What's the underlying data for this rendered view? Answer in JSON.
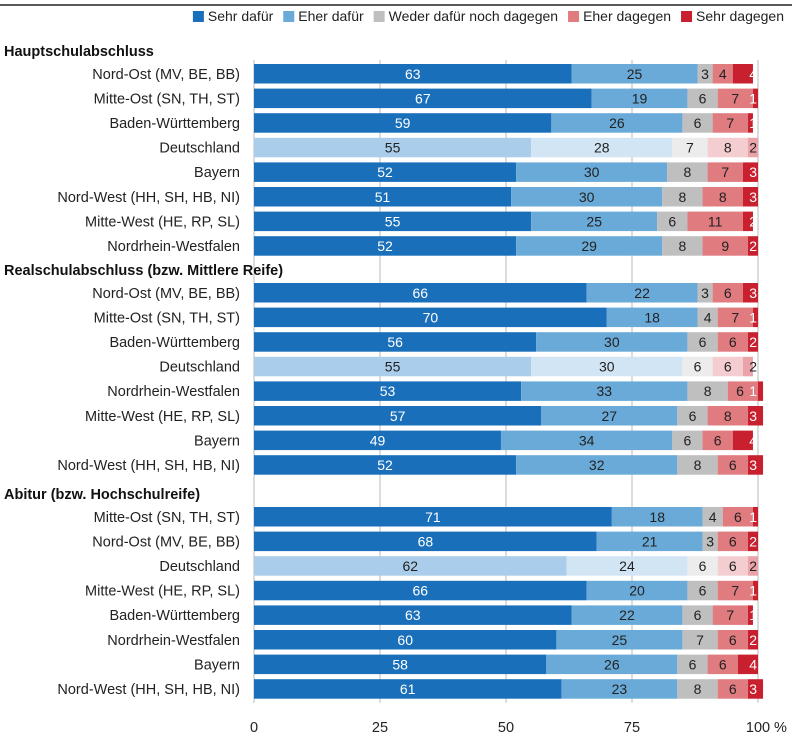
{
  "chart_data": {
    "type": "bar",
    "orientation": "horizontal",
    "stacked": true,
    "xlim": [
      0,
      100
    ],
    "x_ticks": [
      "0",
      "25",
      "50",
      "75",
      "100"
    ],
    "x_unit": "%",
    "grid": true,
    "legend_position": "top",
    "legend": [
      {
        "name": "Sehr dafür",
        "color": "#1a6fba"
      },
      {
        "name": "Eher dafür",
        "color": "#6aaad9"
      },
      {
        "name": "Weder dafür noch dagegen",
        "color": "#bfbfbf"
      },
      {
        "name": "Eher dagegen",
        "color": "#e07b80"
      },
      {
        "name": "Sehr dagegen",
        "color": "#c8202e"
      }
    ],
    "highlight_colors": [
      "#a9cdea",
      "#d2e5f4",
      "#ececec",
      "#f4cdd1",
      "#eaa3a9"
    ],
    "highlight_category": "Deutschland",
    "groups": [
      {
        "title": "Hauptschulabschluss",
        "rows": [
          {
            "label": "Nord-Ost (MV, BE, BB)",
            "values": [
              63,
              25,
              3,
              4,
              4
            ]
          },
          {
            "label": "Mitte-Ost (SN, TH, ST)",
            "values": [
              67,
              19,
              6,
              7,
              1
            ]
          },
          {
            "label": "Baden-Württemberg",
            "values": [
              59,
              26,
              6,
              7,
              1
            ]
          },
          {
            "label": "Deutschland",
            "values": [
              55,
              28,
              7,
              8,
              2
            ]
          },
          {
            "label": "Bayern",
            "values": [
              52,
              30,
              8,
              7,
              3
            ]
          },
          {
            "label": "Nord-West (HH, SH, HB, NI)",
            "values": [
              51,
              30,
              8,
              8,
              3
            ]
          },
          {
            "label": "Mitte-West (HE, RP, SL)",
            "values": [
              55,
              25,
              6,
              11,
              2
            ]
          },
          {
            "label": "Nordrhein-Westfalen",
            "values": [
              52,
              29,
              8,
              9,
              2
            ]
          }
        ]
      },
      {
        "title": "Realschulabschluss (bzw. Mittlere Reife)",
        "rows": [
          {
            "label": "Nord-Ost (MV, BE, BB)",
            "values": [
              66,
              22,
              3,
              6,
              3
            ]
          },
          {
            "label": "Mitte-Ost (SN, TH, ST)",
            "values": [
              70,
              18,
              4,
              7,
              1
            ]
          },
          {
            "label": "Baden-Württemberg",
            "values": [
              56,
              30,
              6,
              6,
              2
            ]
          },
          {
            "label": "Deutschland",
            "values": [
              55,
              30,
              6,
              6,
              2
            ]
          },
          {
            "label": "Nordrhein-Westfalen",
            "values": [
              53,
              33,
              8,
              6,
              1
            ]
          },
          {
            "label": "Mitte-West (HE, RP, SL)",
            "values": [
              57,
              27,
              6,
              8,
              3
            ]
          },
          {
            "label": "Bayern",
            "values": [
              49,
              34,
              6,
              6,
              4
            ]
          },
          {
            "label": "Nord-West (HH, SH, HB, NI)",
            "values": [
              52,
              32,
              8,
              6,
              3
            ]
          }
        ]
      },
      {
        "title": "Abitur (bzw. Hochschulreife)",
        "rows": [
          {
            "label": "Mitte-Ost (SN, TH, ST)",
            "values": [
              71,
              18,
              4,
              6,
              1
            ]
          },
          {
            "label": "Nord-Ost (MV, BE, BB)",
            "values": [
              68,
              21,
              3,
              6,
              2
            ]
          },
          {
            "label": "Deutschland",
            "values": [
              62,
              24,
              6,
              6,
              2
            ]
          },
          {
            "label": "Mitte-West (HE, RP, SL)",
            "values": [
              66,
              20,
              6,
              7,
              1
            ]
          },
          {
            "label": "Baden-Württemberg",
            "values": [
              63,
              22,
              6,
              7,
              1
            ]
          },
          {
            "label": "Nordrhein-Westfalen",
            "values": [
              60,
              25,
              7,
              6,
              2
            ]
          },
          {
            "label": "Bayern",
            "values": [
              58,
              26,
              6,
              6,
              4
            ]
          },
          {
            "label": "Nord-West (HH, SH, HB, NI)",
            "values": [
              61,
              23,
              8,
              6,
              3
            ]
          }
        ]
      }
    ]
  }
}
